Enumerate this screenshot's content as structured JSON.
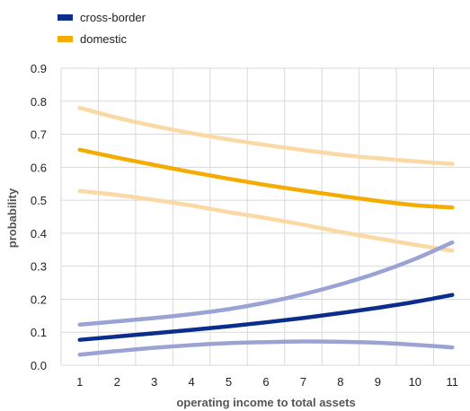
{
  "chart_data": {
    "type": "line",
    "xlabel": "operating income to total assets",
    "ylabel": "probability",
    "x": [
      1,
      2,
      3,
      4,
      5,
      6,
      7,
      8,
      9,
      10,
      11
    ],
    "xlim": [
      0.5,
      11.5
    ],
    "ylim": [
      0,
      0.9
    ],
    "yticks": [
      "0.0",
      "0.1",
      "0.2",
      "0.3",
      "0.4",
      "0.5",
      "0.6",
      "0.7",
      "0.8",
      "0.9"
    ],
    "xticks": [
      "1",
      "2",
      "3",
      "4",
      "5",
      "6",
      "7",
      "8",
      "9",
      "10",
      "11"
    ],
    "grid": true,
    "legend_position": "top-left",
    "legend": [
      {
        "label": "cross-border",
        "color": "#0b2d8c"
      },
      {
        "label": "domestic",
        "color": "#f5ac00"
      }
    ],
    "series": [
      {
        "name": "cross-border",
        "color": "#0b2d8c",
        "values": [
          0.077,
          0.087,
          0.097,
          0.107,
          0.118,
          0.13,
          0.143,
          0.158,
          0.174,
          0.192,
          0.213
        ]
      },
      {
        "color": "#9aa3d4",
        "values": [
          0.123,
          0.133,
          0.143,
          0.155,
          0.17,
          0.19,
          0.215,
          0.245,
          0.28,
          0.322,
          0.372
        ]
      },
      {
        "color": "#9aa3d4",
        "values": [
          0.032,
          0.043,
          0.053,
          0.061,
          0.067,
          0.07,
          0.072,
          0.071,
          0.068,
          0.062,
          0.054
        ]
      },
      {
        "name": "domestic",
        "color": "#f5ac00",
        "values": [
          0.653,
          0.629,
          0.607,
          0.585,
          0.565,
          0.546,
          0.529,
          0.513,
          0.498,
          0.485,
          0.478
        ]
      },
      {
        "color": "#fad9a4",
        "values": [
          0.78,
          0.75,
          0.725,
          0.703,
          0.684,
          0.667,
          0.652,
          0.638,
          0.627,
          0.618,
          0.61
        ]
      },
      {
        "color": "#fad9a4",
        "values": [
          0.528,
          0.516,
          0.501,
          0.484,
          0.464,
          0.446,
          0.426,
          0.404,
          0.384,
          0.365,
          0.347
        ]
      }
    ]
  }
}
